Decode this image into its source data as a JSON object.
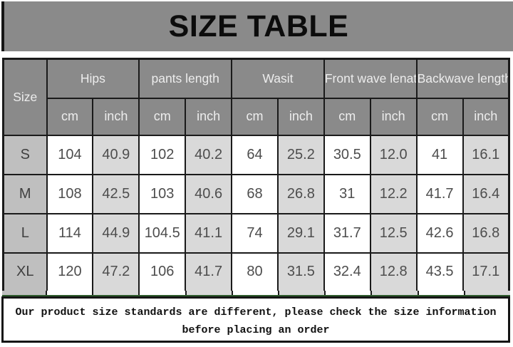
{
  "title": "SIZE TABLE",
  "chart_data": {
    "type": "table",
    "title": "SIZE TABLE",
    "corner_header": "Size",
    "column_groups": [
      "Hips",
      "pants length",
      "Wasit",
      "Front wave lenath",
      "Backwave length"
    ],
    "unit_row": [
      "cm",
      "inch",
      "cm",
      "inch",
      "cm",
      "inch",
      "cm",
      "inch",
      "cm",
      "inch"
    ],
    "rows": [
      {
        "size": "S",
        "values": [
          "104",
          "40.9",
          "102",
          "40.2",
          "64",
          "25.2",
          "30.5",
          "12.0",
          "41",
          "16.1"
        ]
      },
      {
        "size": "M",
        "values": [
          "108",
          "42.5",
          "103",
          "40.6",
          "68",
          "26.8",
          "31",
          "12.2",
          "41.7",
          "16.4"
        ]
      },
      {
        "size": "L",
        "values": [
          "114",
          "44.9",
          "104.5",
          "41.1",
          "74",
          "29.1",
          "31.7",
          "12.5",
          "42.6",
          "16.8"
        ]
      },
      {
        "size": "XL",
        "values": [
          "120",
          "47.2",
          "106",
          "41.7",
          "80",
          "31.5",
          "32.4",
          "12.8",
          "43.5",
          "17.1"
        ]
      }
    ]
  },
  "footer": {
    "line1": "Our product size standards are different, please check the size information",
    "line2": "before placing an order"
  },
  "colors": {
    "title_bar_bg": "#8a8a8a",
    "table_header_bg": "#8a8a8a",
    "header_text": "#ededed",
    "size_cell_bg": "#bfbfbf",
    "cm_cell_bg": "#ffffff",
    "inch_cell_bg": "#d9d9d9",
    "data_text": "#4d4d4d",
    "border": "#1a1a1a",
    "accent_green": "#2d5a2b"
  }
}
